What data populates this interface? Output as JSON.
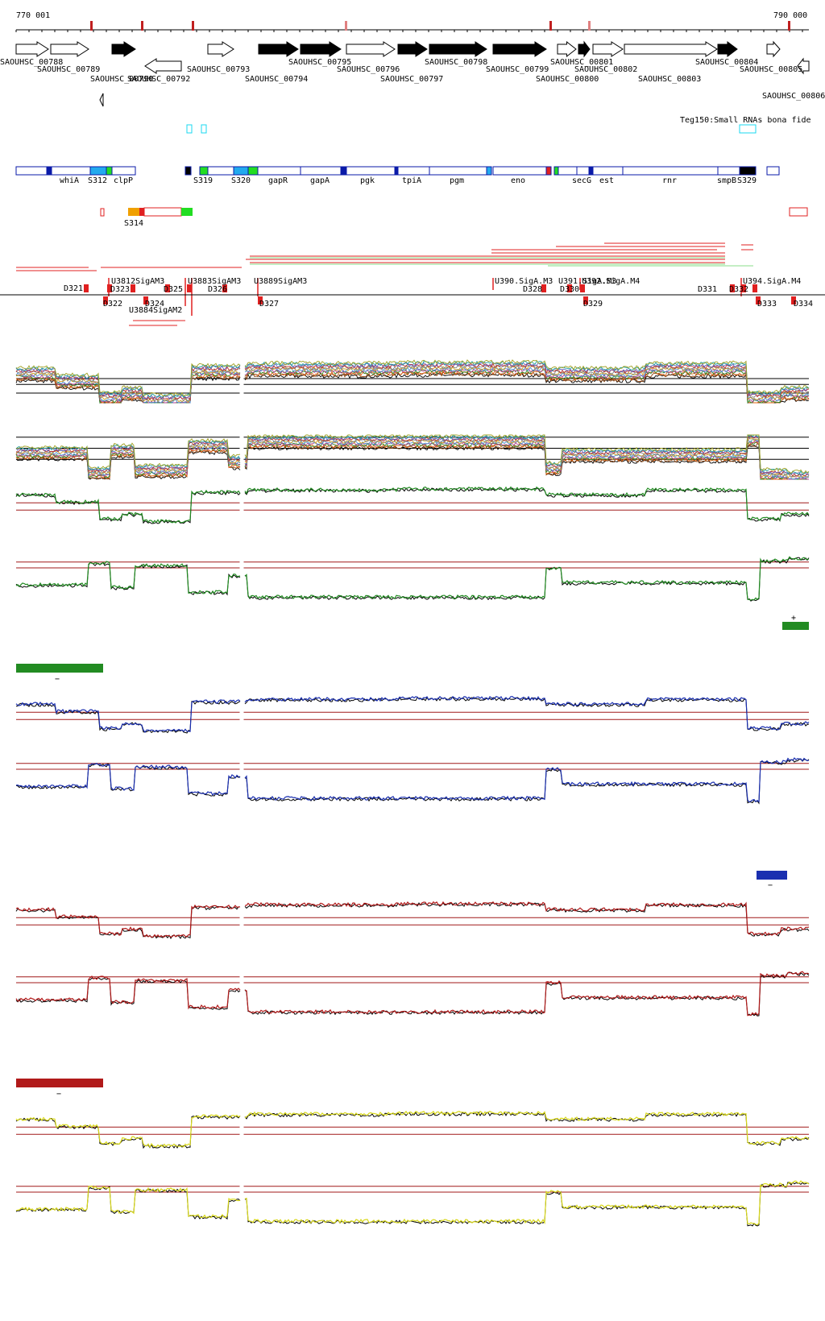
{
  "ruler": {
    "start": "770 001",
    "end": "790 000"
  },
  "genes_plus": [
    {
      "name": "SAOUHSC_00788",
      "filled": false
    },
    {
      "name": "SAOUHSC_00789",
      "filled": false
    },
    {
      "name": "SAOUHSC_00790",
      "filled": true
    },
    {
      "name": "SAOUHSC_00793",
      "filled": false
    },
    {
      "name": "SAOUHSC_00794",
      "filled": true
    },
    {
      "name": "SAOUHSC_00795",
      "filled": true
    },
    {
      "name": "SAOUHSC_00796",
      "filled": false
    },
    {
      "name": "SAOUHSC_00797",
      "filled": true
    },
    {
      "name": "SAOUHSC_00798",
      "filled": true
    },
    {
      "name": "SAOUHSC_00799",
      "filled": true
    },
    {
      "name": "SAOUHSC_00800",
      "filled": false
    },
    {
      "name": "SAOUHSC_00801",
      "filled": true
    },
    {
      "name": "SAOUHSC_00802",
      "filled": false
    },
    {
      "name": "SAOUHSC_00803",
      "filled": false
    },
    {
      "name": "SAOUHSC_00804",
      "filled": true
    },
    {
      "name": "SAOUHSC_00805",
      "filled": false
    }
  ],
  "genes_minus": [
    {
      "name": "SAOUHSC_00792",
      "filled": false
    },
    {
      "name": "SAOUHSC_00806",
      "filled": false
    }
  ],
  "srna_track_label": "Teg150:Small RNAs bona fide",
  "operon_labels": [
    "whiA",
    "S312",
    "clpP",
    "S319",
    "S320",
    "gapR",
    "gapA",
    "pgk",
    "tpiA",
    "pgm",
    "eno",
    "secG",
    "est",
    "rnr",
    "smpB",
    "S329"
  ],
  "s314_label": "S314",
  "tss_labels_top": [
    "D321",
    "U3812SigAM3",
    "D323",
    "D325",
    "U3883SigAM3",
    "D326",
    "U3889SigAM3",
    "U390.SigA.M3",
    "D328",
    "U391.SigA.M3",
    "U392.SigA.M4",
    "D330",
    "D331",
    "D332",
    "U394.SigA.M4"
  ],
  "tss_labels_bottom": [
    "D322",
    "D324",
    "U3884SigAM2",
    "D327",
    "D329",
    "D333",
    "D334"
  ],
  "sign_plus": "+",
  "sign_minus_a": "−",
  "sign_minus_b": "−",
  "sign_minus_c": "−",
  "colors": {
    "green": "#228b22",
    "blue": "#1a2fb0",
    "red": "#b11a1a",
    "yellow": "#d8d81a",
    "threshold": "#a01818",
    "cyan": "#19d8f0",
    "operon_blue": "#0a1aa8"
  }
}
